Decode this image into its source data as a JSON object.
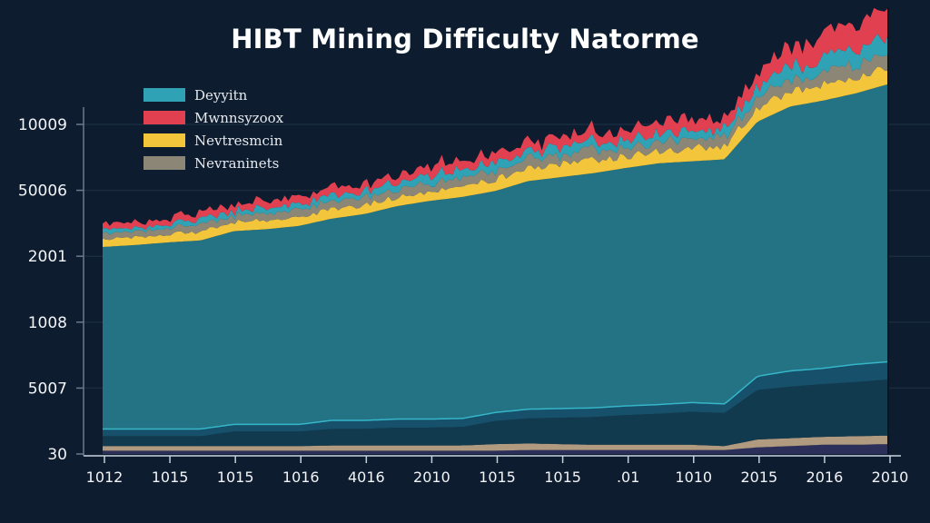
{
  "chart_data": {
    "type": "area",
    "stacked": true,
    "title": "HIBT Mining Difficulty Natorme",
    "xlabel": "",
    "ylabel": "",
    "x_tick_labels": [
      "1012",
      "1015",
      "1015",
      "1016",
      "4016",
      "2010",
      "1015",
      "1015",
      ".01",
      "1010",
      "2015",
      "2016",
      "2010"
    ],
    "y_tick_labels": [
      "30",
      "5007",
      "1008",
      "2001",
      "50006",
      "10009"
    ],
    "y_scale_note": "values expressed in y-tick index units (0 = '30' ... 5 = '10009')",
    "ylim": [
      0,
      5.4
    ],
    "grid": "horizontal",
    "legend": {
      "position": "top-left",
      "entries": [
        {
          "label": "Deyyitn",
          "color": "#2fa3b5"
        },
        {
          "label": "Mwnnsyzoox",
          "color": "#e0404f"
        },
        {
          "label": "Nevtresmcin",
          "color": "#f2c53a"
        },
        {
          "label": "Nevraninets",
          "color": "#8c8677"
        }
      ]
    },
    "x": [
      0,
      0.5,
      1,
      1.5,
      2,
      2.5,
      3,
      3.5,
      4,
      4.5,
      5,
      5.5,
      6,
      6.5,
      7,
      7.5,
      8,
      8.5,
      9,
      9.5,
      10,
      10.5,
      11,
      11.5,
      12
    ],
    "series": [
      {
        "name": "base-navy",
        "color": "#2b2f5a",
        "values": [
          0.05,
          0.05,
          0.05,
          0.05,
          0.05,
          0.05,
          0.05,
          0.05,
          0.05,
          0.05,
          0.05,
          0.05,
          0.05,
          0.06,
          0.06,
          0.06,
          0.06,
          0.06,
          0.06,
          0.06,
          0.1,
          0.12,
          0.14,
          0.14,
          0.15
        ]
      },
      {
        "name": "tan-line",
        "color": "#b09a80",
        "values": [
          0.07,
          0.07,
          0.07,
          0.07,
          0.07,
          0.07,
          0.07,
          0.08,
          0.08,
          0.08,
          0.08,
          0.08,
          0.1,
          0.1,
          0.09,
          0.08,
          0.08,
          0.08,
          0.08,
          0.06,
          0.12,
          0.12,
          0.12,
          0.13,
          0.13
        ]
      },
      {
        "name": "dark-teal",
        "color": "#123a4e",
        "values": [
          0.15,
          0.15,
          0.15,
          0.15,
          0.22,
          0.22,
          0.22,
          0.25,
          0.25,
          0.27,
          0.27,
          0.28,
          0.35,
          0.38,
          0.4,
          0.42,
          0.45,
          0.47,
          0.5,
          0.5,
          0.75,
          0.78,
          0.8,
          0.82,
          0.85
        ]
      },
      {
        "name": "mid-teal",
        "color": "#16506a",
        "values": [
          0.12,
          0.12,
          0.12,
          0.12,
          0.12,
          0.12,
          0.12,
          0.14,
          0.14,
          0.14,
          0.14,
          0.14,
          0.14,
          0.15,
          0.15,
          0.15,
          0.15,
          0.15,
          0.15,
          0.15,
          0.22,
          0.25,
          0.25,
          0.28,
          0.28
        ]
      },
      {
        "name": "Deyyitn",
        "color": "#247384",
        "values": [
          2.75,
          2.78,
          2.82,
          2.85,
          2.92,
          2.95,
          3.0,
          3.05,
          3.12,
          3.22,
          3.3,
          3.35,
          3.35,
          3.45,
          3.5,
          3.55,
          3.6,
          3.65,
          3.65,
          3.7,
          3.85,
          4.0,
          4.05,
          4.1,
          4.2
        ]
      },
      {
        "name": "Nevtresmcin",
        "color": "#f2c53a",
        "values": [
          0.12,
          0.12,
          0.13,
          0.13,
          0.14,
          0.14,
          0.14,
          0.14,
          0.14,
          0.14,
          0.15,
          0.15,
          0.18,
          0.2,
          0.2,
          0.2,
          0.18,
          0.18,
          0.2,
          0.2,
          0.22,
          0.22,
          0.24,
          0.25,
          0.27
        ]
      },
      {
        "name": "Nevraninets",
        "color": "#8c8677",
        "values": [
          0.1,
          0.1,
          0.1,
          0.1,
          0.1,
          0.1,
          0.1,
          0.12,
          0.12,
          0.12,
          0.12,
          0.12,
          0.14,
          0.14,
          0.14,
          0.14,
          0.14,
          0.14,
          0.14,
          0.15,
          0.17,
          0.18,
          0.2,
          0.2,
          0.22
        ]
      },
      {
        "name": "cyan-band",
        "color": "#2fa3b5",
        "values": [
          0.06,
          0.06,
          0.06,
          0.07,
          0.08,
          0.08,
          0.08,
          0.09,
          0.1,
          0.1,
          0.12,
          0.12,
          0.12,
          0.12,
          0.12,
          0.12,
          0.12,
          0.12,
          0.12,
          0.12,
          0.15,
          0.2,
          0.22,
          0.24,
          0.25
        ]
      },
      {
        "name": "Mwnnsyzoox",
        "color": "#e0404f",
        "values": [
          0.08,
          0.08,
          0.09,
          0.1,
          0.1,
          0.1,
          0.1,
          0.12,
          0.12,
          0.12,
          0.14,
          0.14,
          0.14,
          0.14,
          0.15,
          0.15,
          0.16,
          0.16,
          0.15,
          0.15,
          0.2,
          0.3,
          0.35,
          0.4,
          0.45
        ]
      }
    ]
  }
}
